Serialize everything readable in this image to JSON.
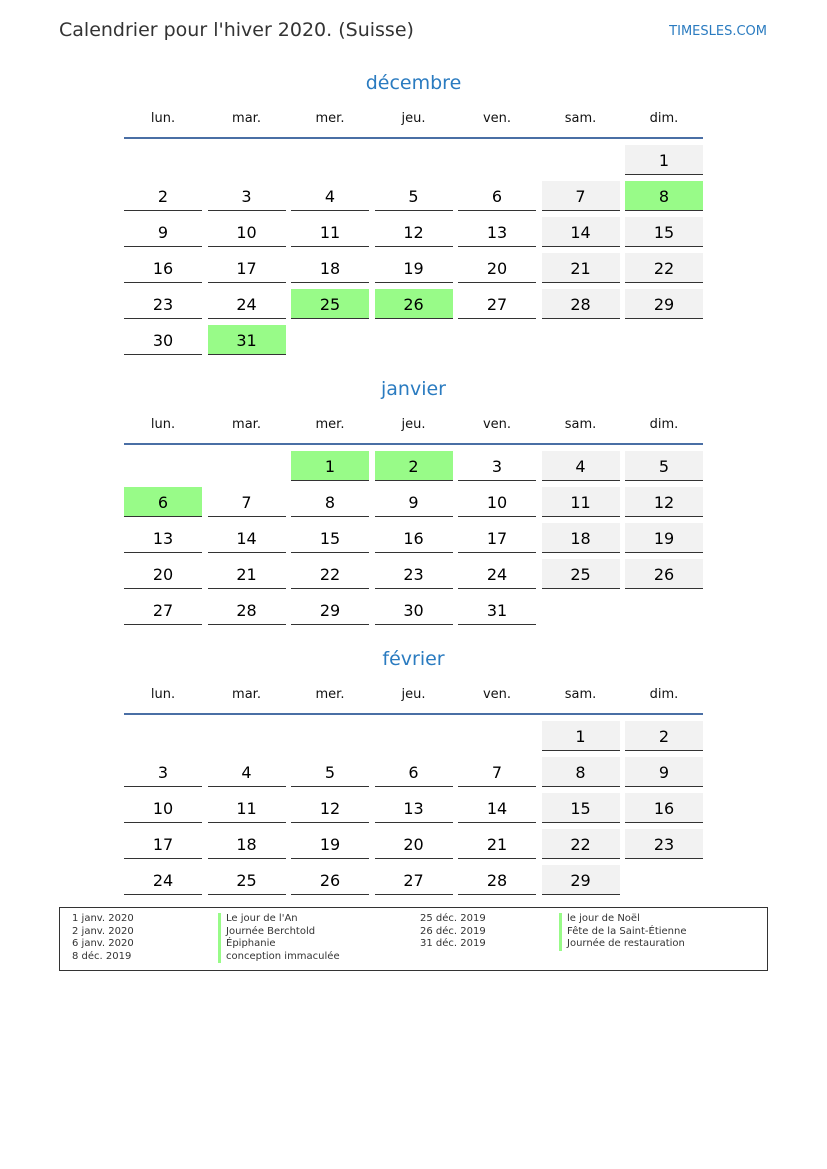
{
  "header": {
    "title": "Calendrier pour l'hiver 2020. (Suisse)",
    "brand": "TIMESLES.COM"
  },
  "colors": {
    "accent": "#2a7bc0",
    "holiday": "#98fb88",
    "weekend": "#f2f2f2",
    "rule": "#4a6fa5"
  },
  "weekdays": [
    "lun.",
    "mar.",
    "mer.",
    "jeu.",
    "ven.",
    "sam.",
    "dim."
  ],
  "months": [
    {
      "name": "décembre",
      "weeks": [
        [
          null,
          null,
          null,
          null,
          null,
          null,
          1
        ],
        [
          2,
          3,
          4,
          5,
          6,
          7,
          8
        ],
        [
          9,
          10,
          11,
          12,
          13,
          14,
          15
        ],
        [
          16,
          17,
          18,
          19,
          20,
          21,
          22
        ],
        [
          23,
          24,
          25,
          26,
          27,
          28,
          29
        ],
        [
          30,
          31,
          null,
          null,
          null,
          null,
          null
        ]
      ],
      "holidays": [
        8,
        25,
        26,
        31
      ]
    },
    {
      "name": "janvier",
      "weeks": [
        [
          null,
          null,
          1,
          2,
          3,
          4,
          5
        ],
        [
          6,
          7,
          8,
          9,
          10,
          11,
          12
        ],
        [
          13,
          14,
          15,
          16,
          17,
          18,
          19
        ],
        [
          20,
          21,
          22,
          23,
          24,
          25,
          26
        ],
        [
          27,
          28,
          29,
          30,
          31,
          null,
          null
        ]
      ],
      "holidays": [
        1,
        2,
        6
      ]
    },
    {
      "name": "février",
      "weeks": [
        [
          null,
          null,
          null,
          null,
          null,
          1,
          2
        ],
        [
          3,
          4,
          5,
          6,
          7,
          8,
          9
        ],
        [
          10,
          11,
          12,
          13,
          14,
          15,
          16
        ],
        [
          17,
          18,
          19,
          20,
          21,
          22,
          23
        ],
        [
          24,
          25,
          26,
          27,
          28,
          29,
          null
        ]
      ],
      "holidays": []
    }
  ],
  "legend": [
    [
      {
        "date": "1 janv. 2020",
        "name": "Le jour de l'An"
      },
      {
        "date": "2 janv. 2020",
        "name": "Journée Berchtold"
      },
      {
        "date": "6 janv. 2020",
        "name": "Épiphanie"
      },
      {
        "date": "8 déc. 2019",
        "name": "conception immaculée"
      }
    ],
    [
      {
        "date": "25 déc. 2019",
        "name": "le jour de Noël"
      },
      {
        "date": "26 déc. 2019",
        "name": "Fête de la Saint-Étienne"
      },
      {
        "date": "31 déc. 2019",
        "name": "Journée de restauration"
      }
    ]
  ]
}
